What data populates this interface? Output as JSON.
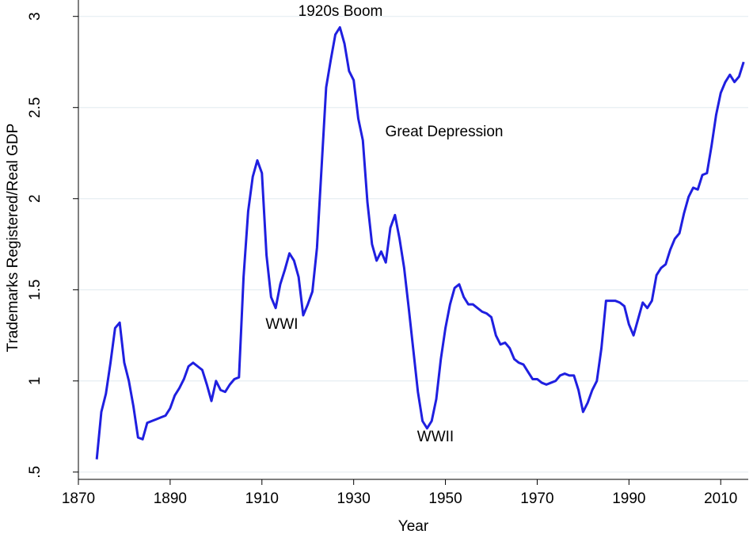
{
  "chart_data": {
    "type": "line",
    "y_label": "Trademarks Registered/Real GDP",
    "x_label": "Year",
    "annotations": [
      "1920s Boom",
      "Great Depression",
      "WWI",
      "WWII"
    ],
    "x": [
      1874,
      1875,
      1876,
      1877,
      1878,
      1879,
      1880,
      1881,
      1882,
      1883,
      1884,
      1885,
      1886,
      1887,
      1888,
      1889,
      1890,
      1891,
      1892,
      1893,
      1894,
      1895,
      1896,
      1897,
      1898,
      1899,
      1900,
      1901,
      1902,
      1903,
      1904,
      1905,
      1906,
      1907,
      1908,
      1909,
      1910,
      1911,
      1912,
      1913,
      1914,
      1915,
      1916,
      1917,
      1918,
      1919,
      1920,
      1921,
      1922,
      1923,
      1924,
      1925,
      1926,
      1927,
      1928,
      1929,
      1930,
      1931,
      1932,
      1933,
      1934,
      1935,
      1936,
      1937,
      1938,
      1939,
      1940,
      1941,
      1942,
      1943,
      1944,
      1945,
      1946,
      1947,
      1948,
      1949,
      1950,
      1951,
      1952,
      1953,
      1954,
      1955,
      1956,
      1957,
      1958,
      1959,
      1960,
      1961,
      1962,
      1963,
      1964,
      1965,
      1966,
      1967,
      1968,
      1969,
      1970,
      1971,
      1972,
      1973,
      1974,
      1975,
      1976,
      1977,
      1978,
      1979,
      1980,
      1981,
      1982,
      1983,
      1984,
      1985,
      1986,
      1987,
      1988,
      1989,
      1990,
      1991,
      1992,
      1993,
      1994,
      1995,
      1996,
      1997,
      1998,
      1999,
      2000,
      2001,
      2002,
      2003,
      2004,
      2005,
      2006,
      2007,
      2008,
      2009,
      2010,
      2011,
      2012,
      2013,
      2014,
      2015
    ],
    "series": [
      {
        "color": "#1f1fe0",
        "values": [
          0.57,
          0.83,
          0.93,
          1.1,
          1.29,
          1.32,
          1.1,
          1.0,
          0.86,
          0.69,
          0.68,
          0.77,
          0.78,
          0.79,
          0.8,
          0.81,
          0.85,
          0.92,
          0.96,
          1.01,
          1.08,
          1.1,
          1.08,
          1.06,
          0.98,
          0.89,
          1.0,
          0.95,
          0.94,
          0.98,
          1.01,
          1.02,
          1.57,
          1.93,
          2.12,
          2.21,
          2.14,
          1.69,
          1.46,
          1.4,
          1.53,
          1.61,
          1.7,
          1.66,
          1.57,
          1.36,
          1.42,
          1.49,
          1.73,
          2.17,
          2.61,
          2.76,
          2.9,
          2.94,
          2.85,
          2.7,
          2.65,
          2.44,
          2.32,
          1.98,
          1.75,
          1.66,
          1.71,
          1.65,
          1.84,
          1.91,
          1.78,
          1.62,
          1.4,
          1.17,
          0.94,
          0.78,
          0.74,
          0.78,
          0.9,
          1.12,
          1.29,
          1.42,
          1.51,
          1.53,
          1.46,
          1.42,
          1.42,
          1.4,
          1.38,
          1.37,
          1.35,
          1.25,
          1.2,
          1.21,
          1.18,
          1.12,
          1.1,
          1.09,
          1.05,
          1.01,
          1.01,
          0.99,
          0.98,
          0.99,
          1.0,
          1.03,
          1.04,
          1.03,
          1.03,
          0.95,
          0.83,
          0.88,
          0.95,
          1.0,
          1.18,
          1.44,
          1.44,
          1.44,
          1.43,
          1.41,
          1.31,
          1.25,
          1.34,
          1.43,
          1.4,
          1.44,
          1.58,
          1.62,
          1.64,
          1.72,
          1.78,
          1.81,
          1.92,
          2.01,
          2.06,
          2.05,
          2.13,
          2.14,
          2.29,
          2.46,
          2.58,
          2.64,
          2.68,
          2.64,
          2.67,
          2.75
        ]
      }
    ],
    "xlim": [
      1870,
      2016
    ],
    "xticks": [
      1870,
      1890,
      1910,
      1930,
      1950,
      1970,
      1990,
      2010
    ],
    "ylim": [
      0.46,
      3.09
    ],
    "yticks": [
      {
        "value": 0.5,
        "label": ".5"
      },
      1,
      1.5,
      2,
      2.5,
      3
    ],
    "grid": true
  }
}
